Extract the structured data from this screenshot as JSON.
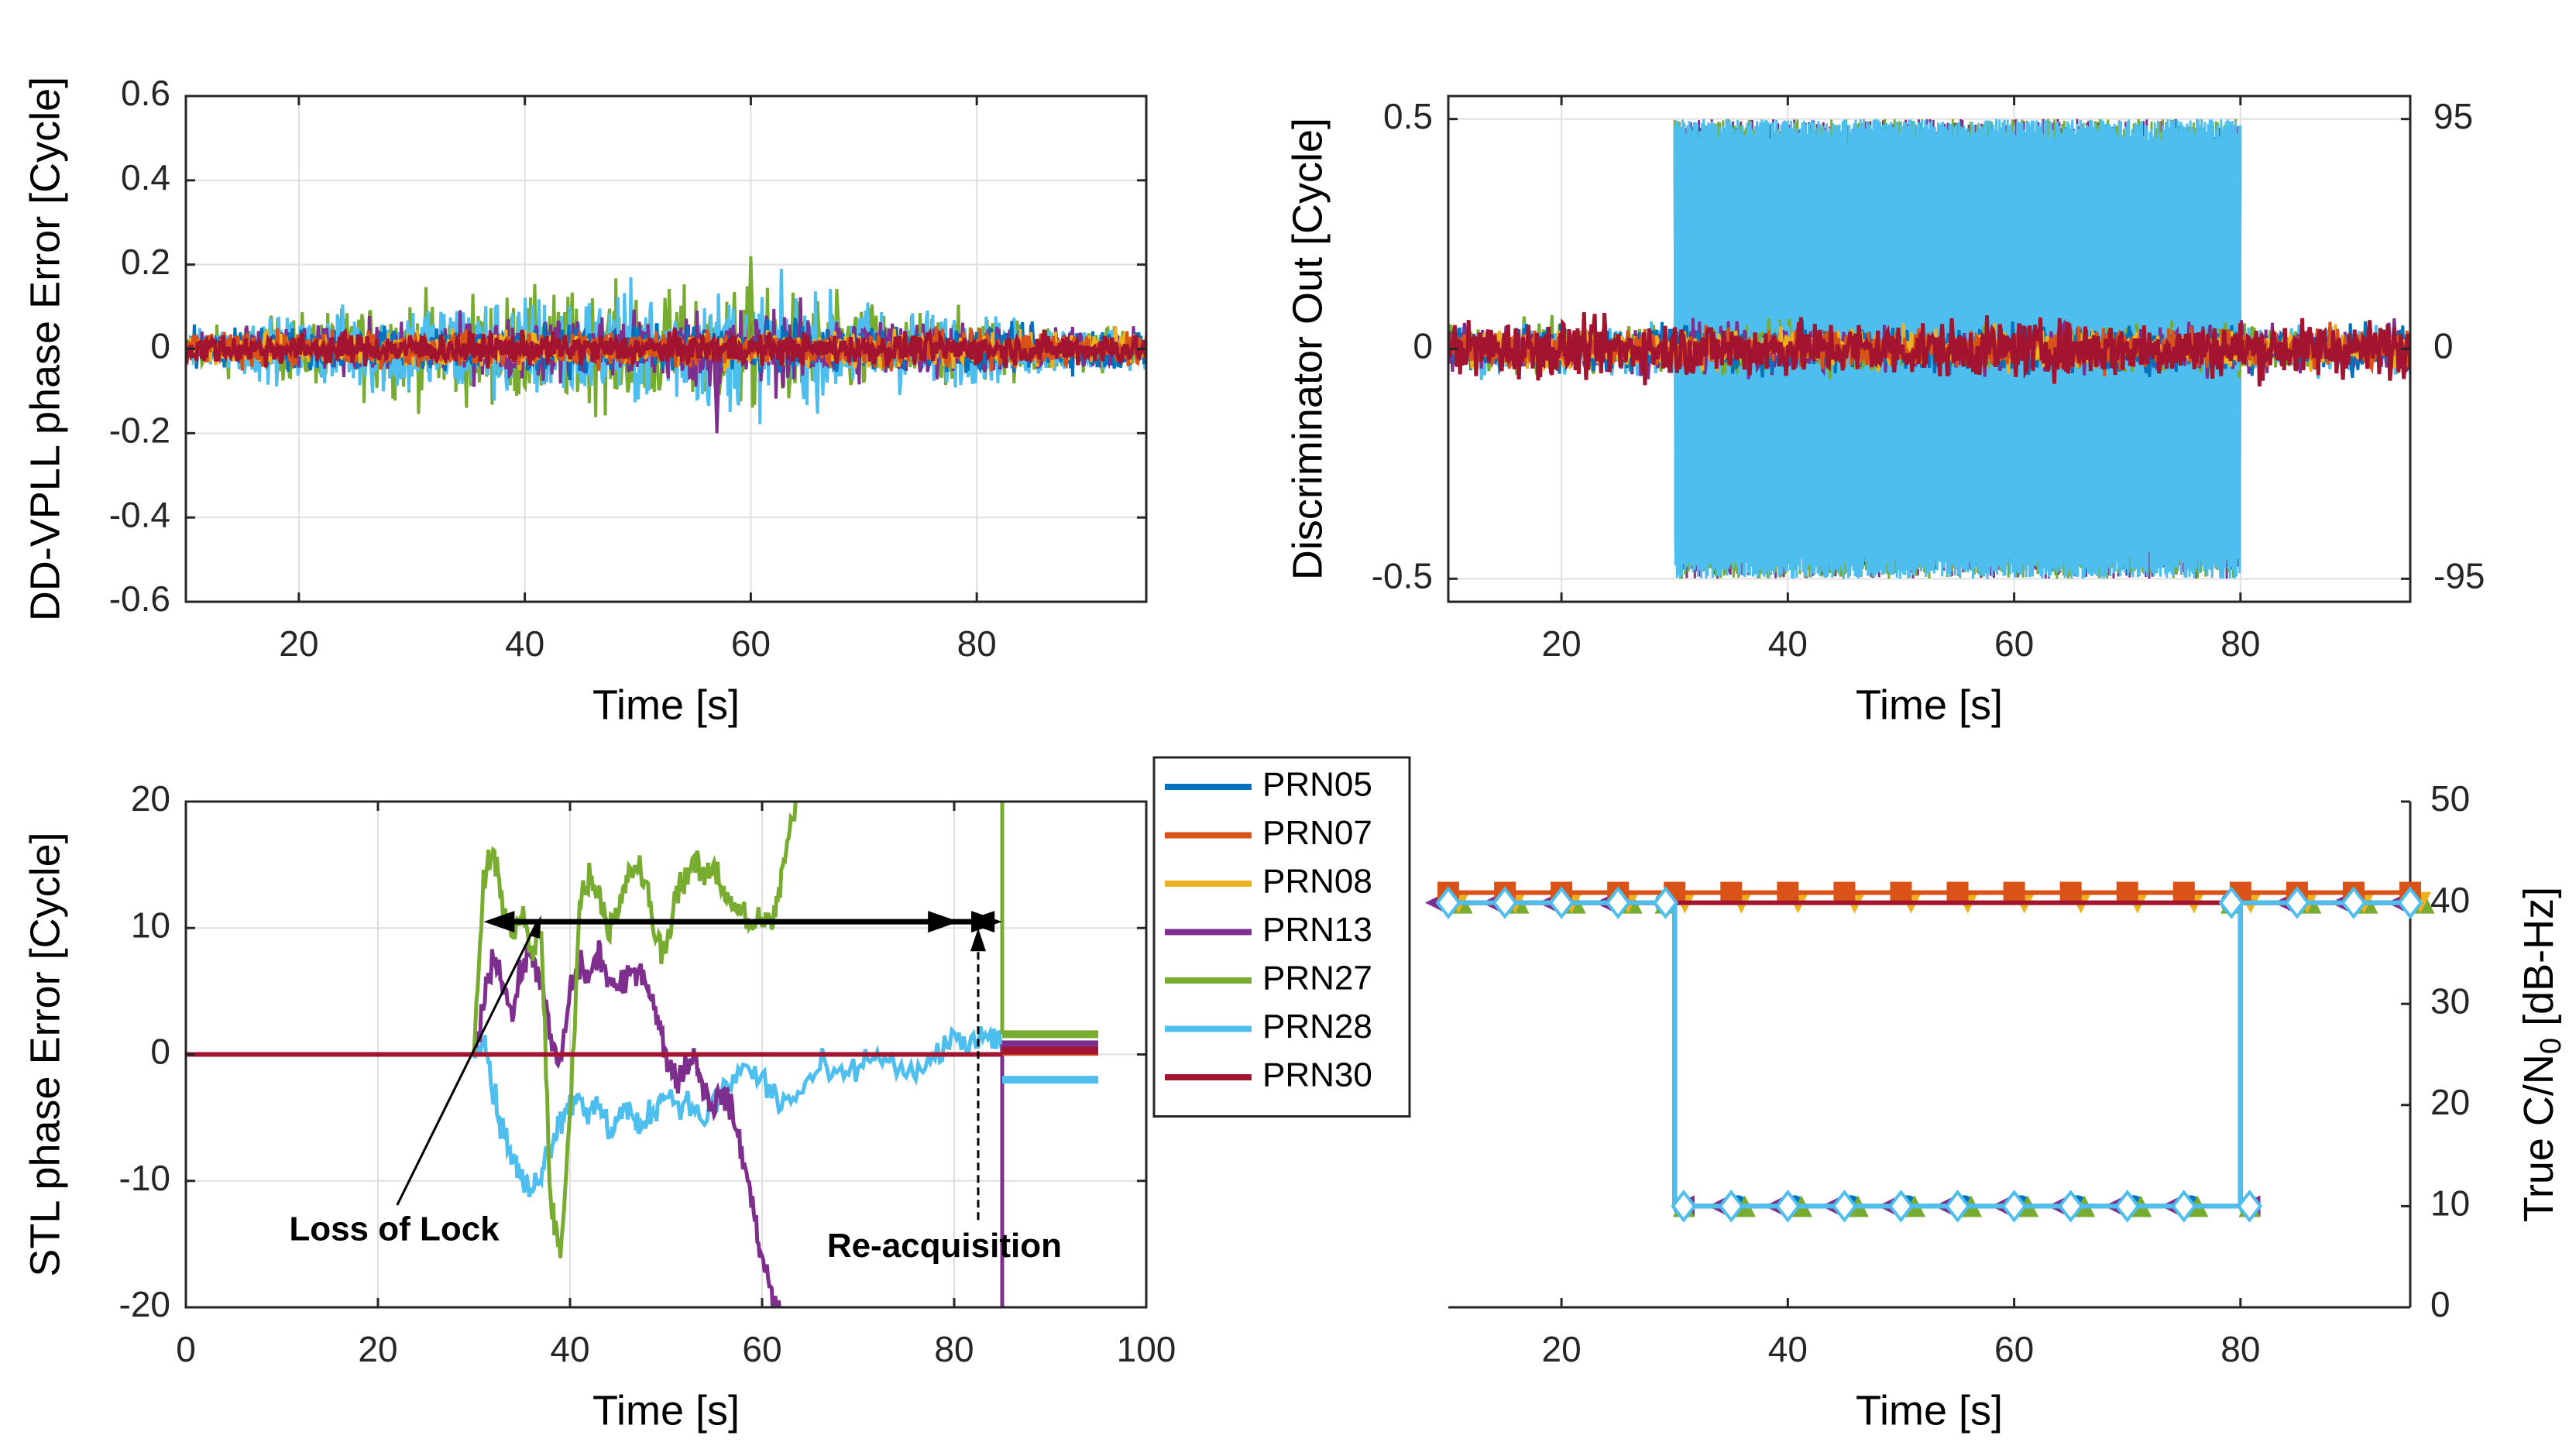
{
  "chart_data": [
    {
      "id": "p1",
      "type": "line",
      "title": "",
      "xlabel": "Time [s]",
      "ylabel": "DD-VPLL phase Error [Cycle]",
      "xlim": [
        10,
        95
      ],
      "ylim": [
        -0.6,
        0.6
      ],
      "grid": true,
      "xticks": [
        20,
        40,
        60,
        80
      ],
      "yticks": [
        -0.6,
        -0.4,
        -0.2,
        0,
        0.2,
        0.4,
        0.6
      ],
      "yticklabels": [
        "-0.6",
        "-0.4",
        "-0.2",
        "0",
        "0.2",
        "0.4",
        "0.6"
      ],
      "series": [
        {
          "name": "PRN05",
          "noise_std": [
            [
              10,
              0.025
            ],
            [
              95,
              0.025
            ]
          ]
        },
        {
          "name": "PRN07",
          "noise_std": [
            [
              10,
              0.02
            ],
            [
              95,
              0.02
            ]
          ]
        },
        {
          "name": "PRN08",
          "noise_std": [
            [
              10,
              0.02
            ],
            [
              95,
              0.02
            ]
          ]
        },
        {
          "name": "PRN13",
          "noise_std": [
            [
              10,
              0.02
            ],
            [
              30,
              0.03
            ],
            [
              60,
              0.05
            ],
            [
              80,
              0.03
            ],
            [
              95,
              0.02
            ]
          ]
        },
        {
          "name": "PRN27",
          "noise_std": [
            [
              10,
              0.02
            ],
            [
              30,
              0.06
            ],
            [
              60,
              0.07
            ],
            [
              80,
              0.04
            ],
            [
              95,
              0.02
            ]
          ]
        },
        {
          "name": "PRN28",
          "noise_std": [
            [
              10,
              0.02
            ],
            [
              30,
              0.06
            ],
            [
              60,
              0.07
            ],
            [
              80,
              0.04
            ],
            [
              95,
              0.02
            ]
          ]
        },
        {
          "name": "PRN30",
          "noise_std": [
            [
              10,
              0.018
            ],
            [
              95,
              0.018
            ]
          ]
        }
      ],
      "peaks": {
        "max": 0.22,
        "min": -0.2
      }
    },
    {
      "id": "p2",
      "type": "line",
      "title": "",
      "xlabel": "Time [s]",
      "ylabel": "Discriminator Out [Cycle]",
      "xlim": [
        10,
        95
      ],
      "ylim": [
        -0.55,
        0.55
      ],
      "grid": true,
      "xticks": [
        20,
        40,
        60,
        80
      ],
      "yticks": [
        -0.5,
        0,
        0.5
      ],
      "yticklabels": [
        "-0.5",
        "0",
        "0.5"
      ],
      "y2ticks": [
        -0.5,
        0,
        0.5
      ],
      "y2ticklabels": [
        "-95",
        "0",
        "95"
      ],
      "jam_interval": [
        30,
        80
      ],
      "jam_amplitude": 0.5,
      "series": [
        {
          "name": "PRN05",
          "noise_std": 0.025
        },
        {
          "name": "PRN07",
          "noise_std": 0.02
        },
        {
          "name": "PRN08",
          "noise_std": 0.02
        },
        {
          "name": "PRN13",
          "noise_std": 0.025
        },
        {
          "name": "PRN27",
          "noise_std": 0.025
        },
        {
          "name": "PRN28",
          "noise_std": 0.025
        },
        {
          "name": "PRN30",
          "noise_std": 0.03
        }
      ]
    },
    {
      "id": "p3",
      "type": "line",
      "title": "",
      "xlabel": "Time [s]",
      "ylabel": "STL phase Error [Cycle]",
      "xlim": [
        0,
        100
      ],
      "ylim": [
        -20,
        20
      ],
      "grid": true,
      "xticks": [
        0,
        20,
        40,
        60,
        80,
        100
      ],
      "yticks": [
        -20,
        -10,
        0,
        10,
        20
      ],
      "yticklabels": [
        "-20",
        "-10",
        "0",
        "10",
        "20"
      ],
      "series": [
        {
          "name": "PRN27",
          "points": [
            [
              30,
              0
            ],
            [
              31,
              14
            ],
            [
              32,
              16
            ],
            [
              33,
              12
            ],
            [
              34,
              9
            ],
            [
              35,
              11
            ],
            [
              36,
              8
            ],
            [
              37,
              10
            ],
            [
              38,
              -12
            ],
            [
              39,
              -16
            ],
            [
              40,
              -5
            ],
            [
              41,
              12
            ],
            [
              42,
              14
            ],
            [
              43,
              13
            ],
            [
              44,
              10
            ],
            [
              45,
              11
            ],
            [
              46,
              14
            ],
            [
              47,
              15
            ],
            [
              48,
              13
            ],
            [
              49,
              9
            ],
            [
              50,
              8
            ],
            [
              51,
              13
            ],
            [
              52,
              14
            ],
            [
              53,
              15
            ],
            [
              54,
              14
            ],
            [
              55,
              15
            ],
            [
              56,
              13
            ],
            [
              57,
              12
            ],
            [
              58,
              11
            ],
            [
              59,
              10
            ],
            [
              60,
              11
            ],
            [
              61,
              10
            ],
            [
              62,
              14
            ],
            [
              63,
              18
            ],
            [
              64,
              21
            ],
            [
              65,
              21
            ]
          ]
        },
        {
          "name": "PRN13",
          "points": [
            [
              30,
              0
            ],
            [
              31,
              4
            ],
            [
              32,
              8
            ],
            [
              33,
              6
            ],
            [
              34,
              3
            ],
            [
              35,
              7
            ],
            [
              36,
              8
            ],
            [
              37,
              6
            ],
            [
              38,
              1
            ],
            [
              39,
              -1
            ],
            [
              40,
              5
            ],
            [
              41,
              7
            ],
            [
              42,
              6
            ],
            [
              43,
              8
            ],
            [
              44,
              6
            ],
            [
              45,
              5
            ],
            [
              46,
              6
            ],
            [
              47,
              7
            ],
            [
              48,
              6
            ],
            [
              49,
              3
            ],
            [
              50,
              0
            ],
            [
              51,
              -2
            ],
            [
              52,
              -1
            ],
            [
              53,
              0
            ],
            [
              54,
              -3
            ],
            [
              55,
              -4
            ],
            [
              56,
              -3
            ],
            [
              57,
              -5
            ],
            [
              58,
              -8
            ],
            [
              59,
              -12
            ],
            [
              60,
              -16
            ],
            [
              61,
              -19
            ],
            [
              62,
              -21
            ]
          ]
        },
        {
          "name": "PRN28",
          "points": [
            [
              30,
              0
            ],
            [
              31,
              2
            ],
            [
              32,
              -3
            ],
            [
              33,
              -6
            ],
            [
              34,
              -8
            ],
            [
              35,
              -10
            ],
            [
              36,
              -11
            ],
            [
              37,
              -9
            ],
            [
              38,
              -7
            ],
            [
              39,
              -5
            ],
            [
              40,
              -4
            ],
            [
              41,
              -3
            ],
            [
              42,
              -5
            ],
            [
              43,
              -4
            ],
            [
              44,
              -6
            ],
            [
              45,
              -5
            ],
            [
              46,
              -4
            ],
            [
              47,
              -6
            ],
            [
              48,
              -5
            ],
            [
              49,
              -4
            ],
            [
              50,
              -3
            ],
            [
              52,
              -4
            ],
            [
              54,
              -5
            ],
            [
              56,
              -3
            ],
            [
              58,
              -1
            ],
            [
              60,
              -2
            ],
            [
              62,
              -4
            ],
            [
              64,
              -3
            ],
            [
              66,
              -1
            ],
            [
              68,
              -2
            ],
            [
              70,
              -1
            ],
            [
              72,
              0
            ],
            [
              74,
              -1
            ],
            [
              76,
              -2
            ],
            [
              78,
              0
            ],
            [
              80,
              1
            ],
            [
              82,
              1
            ],
            [
              84,
              1
            ],
            [
              85,
              1
            ]
          ]
        },
        {
          "name": "PRN30",
          "points": [
            [
              0,
              0
            ],
            [
              95,
              0
            ]
          ]
        }
      ],
      "after_reacq": [
        {
          "name": "PRN05",
          "value": 0.6
        },
        {
          "name": "PRN07",
          "value": 0.2
        },
        {
          "name": "PRN08",
          "value": 0.4
        },
        {
          "name": "PRN13",
          "value": 0.8
        },
        {
          "name": "PRN27",
          "value": 1.6
        },
        {
          "name": "PRN28",
          "value": -2.0
        },
        {
          "name": "PRN30",
          "value": 0.3
        }
      ],
      "reacq_time": 85,
      "annotations": [
        {
          "text": "Loss of Lock",
          "target_x": 37,
          "target_y": 11
        },
        {
          "text": "Re-acquisition",
          "target_x": 82.5,
          "target_y": 10
        }
      ],
      "span_arrow": {
        "x_from": 31,
        "x_to": 85,
        "y": 10.5
      }
    },
    {
      "id": "p4",
      "type": "line",
      "title": "",
      "xlabel": "Time [s]",
      "ylabel": "True C/N0 [dB-Hz]",
      "ylabel_parts": [
        "True C/N",
        "0",
        " [dB-Hz]"
      ],
      "axis_side": "right",
      "xlim": [
        10,
        95
      ],
      "ylim": [
        0,
        50
      ],
      "grid": false,
      "xticks": [
        20,
        40,
        60,
        80
      ],
      "yticks": [
        0,
        10,
        20,
        30,
        40,
        50
      ],
      "yticklabels": [
        "0",
        "10",
        "20",
        "30",
        "40",
        "50"
      ],
      "series": [
        {
          "name": "PRN05",
          "marker": "circle",
          "points": [
            [
              10,
              40
            ],
            [
              30,
              40
            ],
            [
              30,
              10
            ],
            [
              80,
              10
            ],
            [
              80,
              40
            ],
            [
              95,
              40
            ]
          ]
        },
        {
          "name": "PRN07",
          "marker": "square",
          "points": [
            [
              10,
              41
            ],
            [
              95,
              41
            ]
          ]
        },
        {
          "name": "PRN08",
          "marker": "triangle-down",
          "points": [
            [
              10,
              40
            ],
            [
              95,
              40
            ]
          ]
        },
        {
          "name": "PRN13",
          "marker": "triangle-left",
          "points": [
            [
              10,
              40
            ],
            [
              30,
              40
            ],
            [
              30,
              10
            ],
            [
              80,
              10
            ],
            [
              80,
              40
            ],
            [
              95,
              40
            ]
          ]
        },
        {
          "name": "PRN27",
          "marker": "triangle-up",
          "points": [
            [
              10,
              40
            ],
            [
              30,
              40
            ],
            [
              30,
              10
            ],
            [
              80,
              10
            ],
            [
              80,
              40
            ],
            [
              95,
              40
            ]
          ]
        },
        {
          "name": "PRN28",
          "marker": "diamond",
          "points": [
            [
              10,
              40
            ],
            [
              30,
              40
            ],
            [
              30,
              10
            ],
            [
              80,
              10
            ],
            [
              80,
              40
            ],
            [
              95,
              40
            ]
          ]
        },
        {
          "name": "PRN30",
          "marker": "none",
          "points": [
            [
              10,
              40
            ],
            [
              95,
              40
            ]
          ]
        }
      ],
      "marker_step": 5
    }
  ],
  "legend": [
    {
      "name": "PRN05",
      "color": "#0072BD"
    },
    {
      "name": "PRN07",
      "color": "#D95319"
    },
    {
      "name": "PRN08",
      "color": "#EDB120"
    },
    {
      "name": "PRN13",
      "color": "#7E2F8E"
    },
    {
      "name": "PRN27",
      "color": "#77AC30"
    },
    {
      "name": "PRN28",
      "color": "#4DBEEE"
    },
    {
      "name": "PRN30",
      "color": "#A2142F"
    }
  ],
  "colors": {
    "PRN05": "#0072BD",
    "PRN07": "#D95319",
    "PRN08": "#EDB120",
    "PRN13": "#7E2F8E",
    "PRN27": "#77AC30",
    "PRN28": "#4DBEEE",
    "PRN30": "#A2142F",
    "axis": "#262626",
    "grid": "#dfdfdf",
    "annotation": "#000000"
  }
}
